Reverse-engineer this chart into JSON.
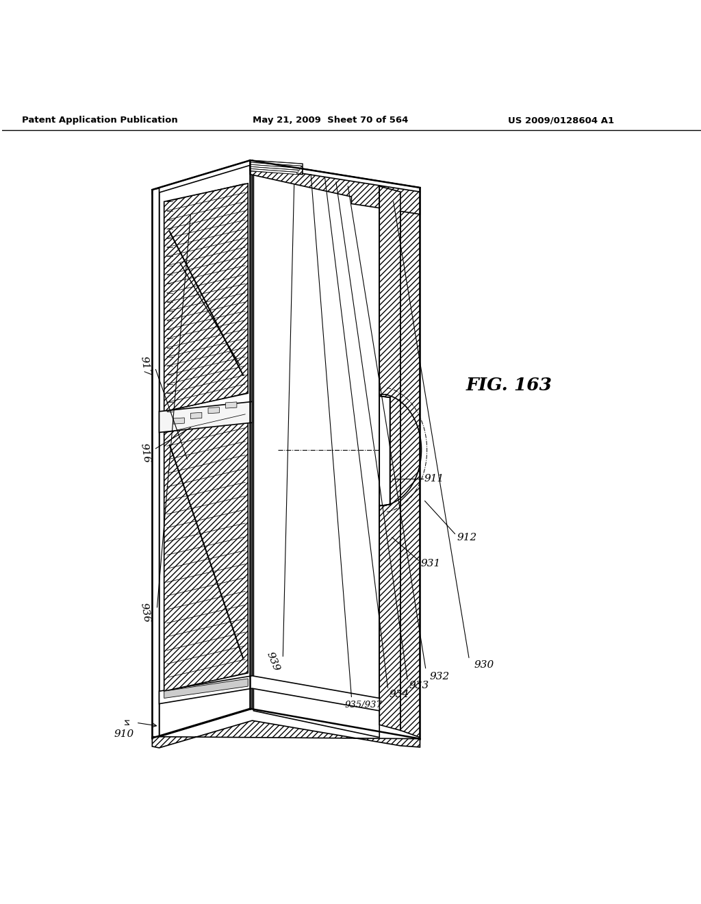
{
  "title_left": "Patent Application Publication",
  "title_mid": "May 21, 2009  Sheet 70 of 564",
  "title_right": "US 2009/0128604 A1",
  "fig_label": "FIG. 163",
  "bg_color": "#ffffff",
  "line_color": "#000000"
}
